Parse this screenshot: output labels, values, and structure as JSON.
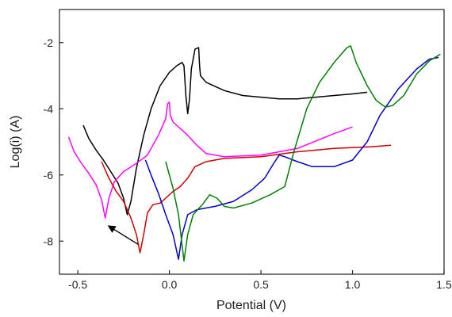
{
  "chart_data": {
    "type": "line",
    "title": "",
    "xlabel": "Potential (V)",
    "ylabel": "Log(i) (A)",
    "xlim": [
      -0.6,
      1.5
    ],
    "ylim": [
      -9.0,
      -1.0
    ],
    "xticks": [
      -0.5,
      0.0,
      0.5,
      1.0,
      1.5
    ],
    "xtick_labels": [
      "-0.5",
      "0.0",
      "0.5",
      "1.0",
      "1.5"
    ],
    "yticks": [
      -8,
      -6,
      -4,
      -2
    ],
    "ytick_labels": [
      "-8",
      "-6",
      "-4",
      "-2"
    ],
    "grid": false,
    "legend": "none",
    "series": [
      {
        "color": "#000000",
        "points": [
          [
            -0.47,
            -4.5
          ],
          [
            -0.44,
            -4.9
          ],
          [
            -0.4,
            -5.25
          ],
          [
            -0.36,
            -5.55
          ],
          [
            -0.32,
            -5.9
          ],
          [
            -0.28,
            -6.25
          ],
          [
            -0.25,
            -6.7
          ],
          [
            -0.23,
            -7.2
          ],
          [
            -0.21,
            -6.8
          ],
          [
            -0.18,
            -5.8
          ],
          [
            -0.14,
            -4.8
          ],
          [
            -0.1,
            -4.0
          ],
          [
            -0.05,
            -3.3
          ],
          [
            0.0,
            -2.9
          ],
          [
            0.04,
            -2.7
          ],
          [
            0.07,
            -2.6
          ],
          [
            0.08,
            -2.7
          ],
          [
            0.09,
            -3.6
          ],
          [
            0.1,
            -4.15
          ],
          [
            0.11,
            -3.7
          ],
          [
            0.12,
            -2.8
          ],
          [
            0.14,
            -2.2
          ],
          [
            0.16,
            -2.15
          ],
          [
            0.165,
            -2.7
          ],
          [
            0.17,
            -3.0
          ],
          [
            0.2,
            -3.2
          ],
          [
            0.3,
            -3.45
          ],
          [
            0.4,
            -3.6
          ],
          [
            0.5,
            -3.65
          ],
          [
            0.6,
            -3.7
          ],
          [
            0.7,
            -3.7
          ],
          [
            0.8,
            -3.65
          ],
          [
            0.9,
            -3.6
          ],
          [
            1.0,
            -3.55
          ],
          [
            1.08,
            -3.5
          ]
        ]
      },
      {
        "color": "#ff00ff",
        "points": [
          [
            -0.55,
            -4.85
          ],
          [
            -0.52,
            -5.3
          ],
          [
            -0.48,
            -5.65
          ],
          [
            -0.44,
            -5.95
          ],
          [
            -0.4,
            -6.3
          ],
          [
            -0.37,
            -6.75
          ],
          [
            -0.35,
            -7.3
          ],
          [
            -0.33,
            -6.7
          ],
          [
            -0.3,
            -6.2
          ],
          [
            -0.25,
            -5.9
          ],
          [
            -0.18,
            -5.65
          ],
          [
            -0.12,
            -5.4
          ],
          [
            -0.06,
            -4.8
          ],
          [
            -0.02,
            -4.3
          ],
          [
            -0.01,
            -3.85
          ],
          [
            0.0,
            -3.8
          ],
          [
            0.005,
            -4.2
          ],
          [
            0.02,
            -4.4
          ],
          [
            0.05,
            -4.55
          ],
          [
            0.1,
            -4.8
          ],
          [
            0.15,
            -5.1
          ],
          [
            0.2,
            -5.35
          ],
          [
            0.3,
            -5.45
          ],
          [
            0.5,
            -5.4
          ],
          [
            0.7,
            -5.2
          ],
          [
            0.9,
            -4.75
          ],
          [
            1.0,
            -4.55
          ]
        ]
      },
      {
        "color": "#cc0000",
        "points": [
          [
            -0.37,
            -5.6
          ],
          [
            -0.33,
            -6.1
          ],
          [
            -0.29,
            -6.5
          ],
          [
            -0.25,
            -6.8
          ],
          [
            -0.21,
            -7.3
          ],
          [
            -0.18,
            -7.8
          ],
          [
            -0.16,
            -8.35
          ],
          [
            -0.14,
            -7.8
          ],
          [
            -0.12,
            -7.15
          ],
          [
            -0.09,
            -6.9
          ],
          [
            -0.05,
            -6.85
          ],
          [
            -0.02,
            -6.7
          ],
          [
            0.02,
            -6.5
          ],
          [
            0.06,
            -6.35
          ],
          [
            0.1,
            -6.1
          ],
          [
            0.14,
            -5.75
          ],
          [
            0.2,
            -5.6
          ],
          [
            0.3,
            -5.5
          ],
          [
            0.5,
            -5.45
          ],
          [
            0.7,
            -5.3
          ],
          [
            0.9,
            -5.2
          ],
          [
            1.1,
            -5.15
          ],
          [
            1.21,
            -5.1
          ]
        ]
      },
      {
        "color": "#0000cc",
        "points": [
          [
            -0.13,
            -5.55
          ],
          [
            -0.1,
            -6.0
          ],
          [
            -0.06,
            -6.55
          ],
          [
            -0.02,
            -7.2
          ],
          [
            0.02,
            -7.8
          ],
          [
            0.05,
            -8.55
          ],
          [
            0.07,
            -7.8
          ],
          [
            0.1,
            -7.2
          ],
          [
            0.15,
            -7.05
          ],
          [
            0.25,
            -6.95
          ],
          [
            0.35,
            -6.8
          ],
          [
            0.45,
            -6.45
          ],
          [
            0.52,
            -6.1
          ],
          [
            0.57,
            -5.65
          ],
          [
            0.6,
            -5.4
          ],
          [
            0.63,
            -5.45
          ],
          [
            0.7,
            -5.6
          ],
          [
            0.78,
            -5.75
          ],
          [
            0.9,
            -5.75
          ],
          [
            1.0,
            -5.55
          ],
          [
            1.08,
            -5.0
          ],
          [
            1.15,
            -4.2
          ],
          [
            1.25,
            -3.4
          ],
          [
            1.35,
            -2.8
          ],
          [
            1.42,
            -2.5
          ],
          [
            1.47,
            -2.45
          ]
        ]
      },
      {
        "color": "#008000",
        "points": [
          [
            -0.02,
            -5.6
          ],
          [
            0.02,
            -6.4
          ],
          [
            0.05,
            -7.2
          ],
          [
            0.08,
            -8.6
          ],
          [
            0.1,
            -7.8
          ],
          [
            0.13,
            -7.2
          ],
          [
            0.18,
            -6.9
          ],
          [
            0.22,
            -6.6
          ],
          [
            0.26,
            -6.7
          ],
          [
            0.3,
            -6.95
          ],
          [
            0.35,
            -7.0
          ],
          [
            0.45,
            -6.85
          ],
          [
            0.55,
            -6.6
          ],
          [
            0.63,
            -6.35
          ],
          [
            0.68,
            -5.3
          ],
          [
            0.75,
            -4.0
          ],
          [
            0.82,
            -3.2
          ],
          [
            0.9,
            -2.6
          ],
          [
            0.97,
            -2.15
          ],
          [
            0.99,
            -2.1
          ],
          [
            1.02,
            -2.6
          ],
          [
            1.08,
            -3.3
          ],
          [
            1.13,
            -3.75
          ],
          [
            1.18,
            -3.95
          ],
          [
            1.22,
            -3.9
          ],
          [
            1.28,
            -3.6
          ],
          [
            1.35,
            -2.95
          ],
          [
            1.42,
            -2.55
          ],
          [
            1.48,
            -2.35
          ]
        ]
      }
    ],
    "annotations": [
      {
        "type": "arrow",
        "from": [
          -0.17,
          -8.1
        ],
        "to": [
          -0.33,
          -7.55
        ],
        "color": "#000000"
      }
    ]
  }
}
